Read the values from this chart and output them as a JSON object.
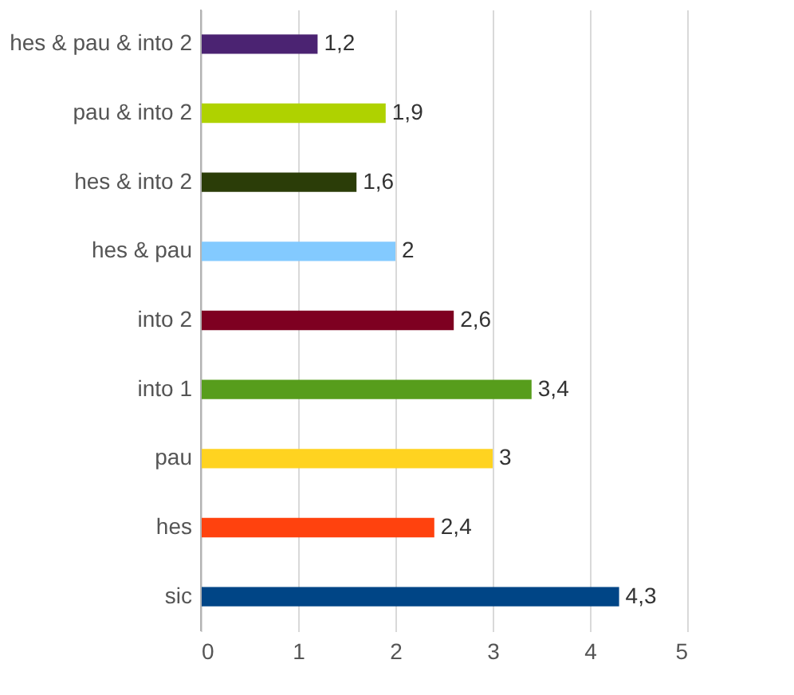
{
  "chart_data": {
    "type": "bar",
    "orientation": "horizontal",
    "categories": [
      "hes & pau & into 2",
      "pau & into 2",
      "hes & into 2",
      "hes & pau",
      "into 2",
      "into 1",
      "pau",
      "hes",
      "sic"
    ],
    "values": [
      1.2,
      1.9,
      1.6,
      2,
      2.6,
      3.4,
      3,
      2.4,
      4.3
    ],
    "colors": [
      "#4b2372",
      "#afd200",
      "#2b3d08",
      "#83caff",
      "#7e0021",
      "#579d1c",
      "#ffd320",
      "#ff420e",
      "#004586"
    ],
    "value_labels": [
      "1,2",
      "1,9",
      "1,6",
      "2",
      "2,6",
      "3,4",
      "3",
      "2,4",
      "4,3"
    ],
    "xlim": [
      0,
      5
    ],
    "xticks": [
      0,
      1,
      2,
      3,
      4,
      5
    ],
    "grid": "x",
    "legend": false
  }
}
